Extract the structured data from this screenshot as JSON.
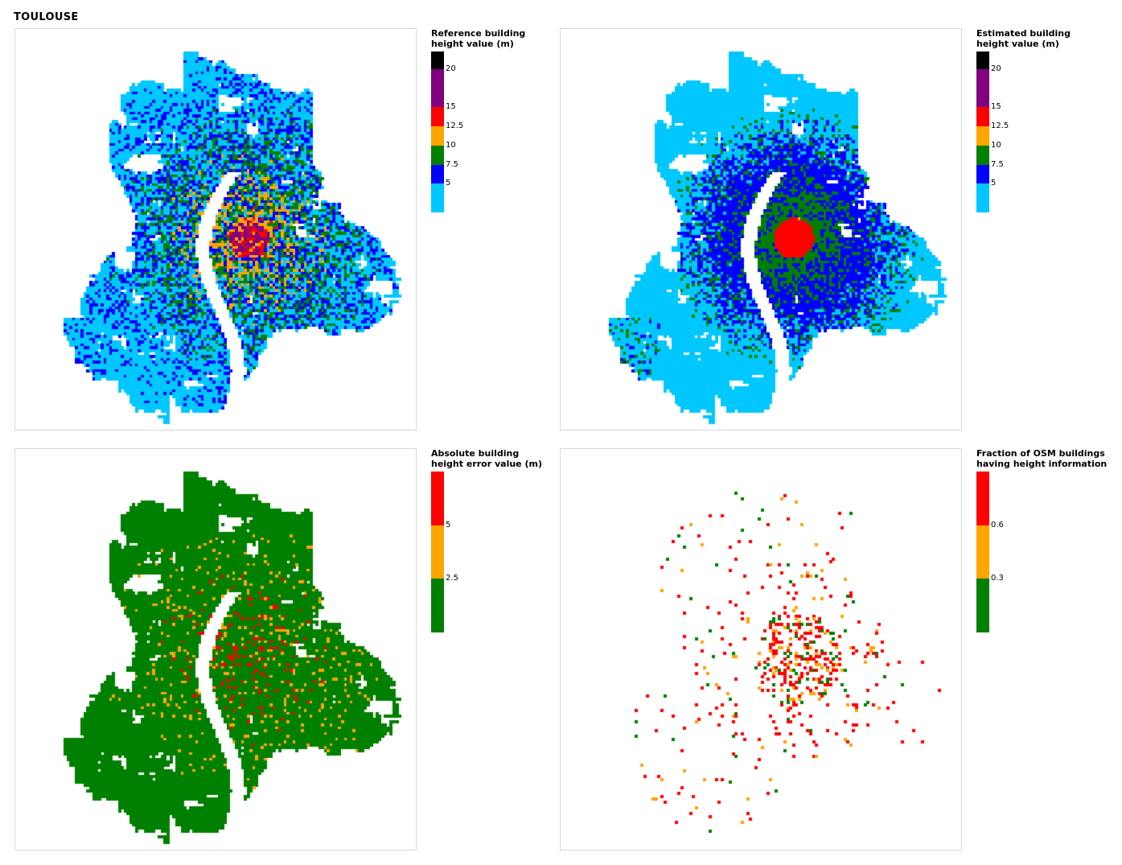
{
  "city": "TOULOUSE",
  "panels": [
    {
      "id": "reference",
      "legend_title": [
        "Reference building",
        "height value (m)"
      ],
      "legend": {
        "colors": [
          "#00c8ff",
          "#0000ff",
          "#008000",
          "#ffa500",
          "#ff0000",
          "#800080",
          "#000000"
        ],
        "ticks": [
          "5",
          "7.5",
          "10",
          "12.5",
          "15",
          "20"
        ]
      }
    },
    {
      "id": "estimated",
      "legend_title": [
        "Estimated building",
        "height value (m)"
      ],
      "legend": {
        "colors": [
          "#00c8ff",
          "#0000ff",
          "#008000",
          "#ffa500",
          "#ff0000",
          "#800080",
          "#000000"
        ],
        "ticks": [
          "5",
          "7.5",
          "10",
          "12.5",
          "15",
          "20"
        ]
      }
    },
    {
      "id": "error",
      "legend_title": [
        "Absolute building",
        "height error value (m)"
      ],
      "legend": {
        "colors": [
          "#008000",
          "#ffa500",
          "#ff0000"
        ],
        "ticks": [
          "2.5",
          "5"
        ]
      }
    },
    {
      "id": "osm",
      "legend_title": [
        "Fraction of OSM buildings",
        "having height information"
      ],
      "legend": {
        "colors": [
          "#008000",
          "#ffa500",
          "#ff0000"
        ],
        "ticks": [
          "0.3",
          "0.6"
        ]
      }
    }
  ]
}
